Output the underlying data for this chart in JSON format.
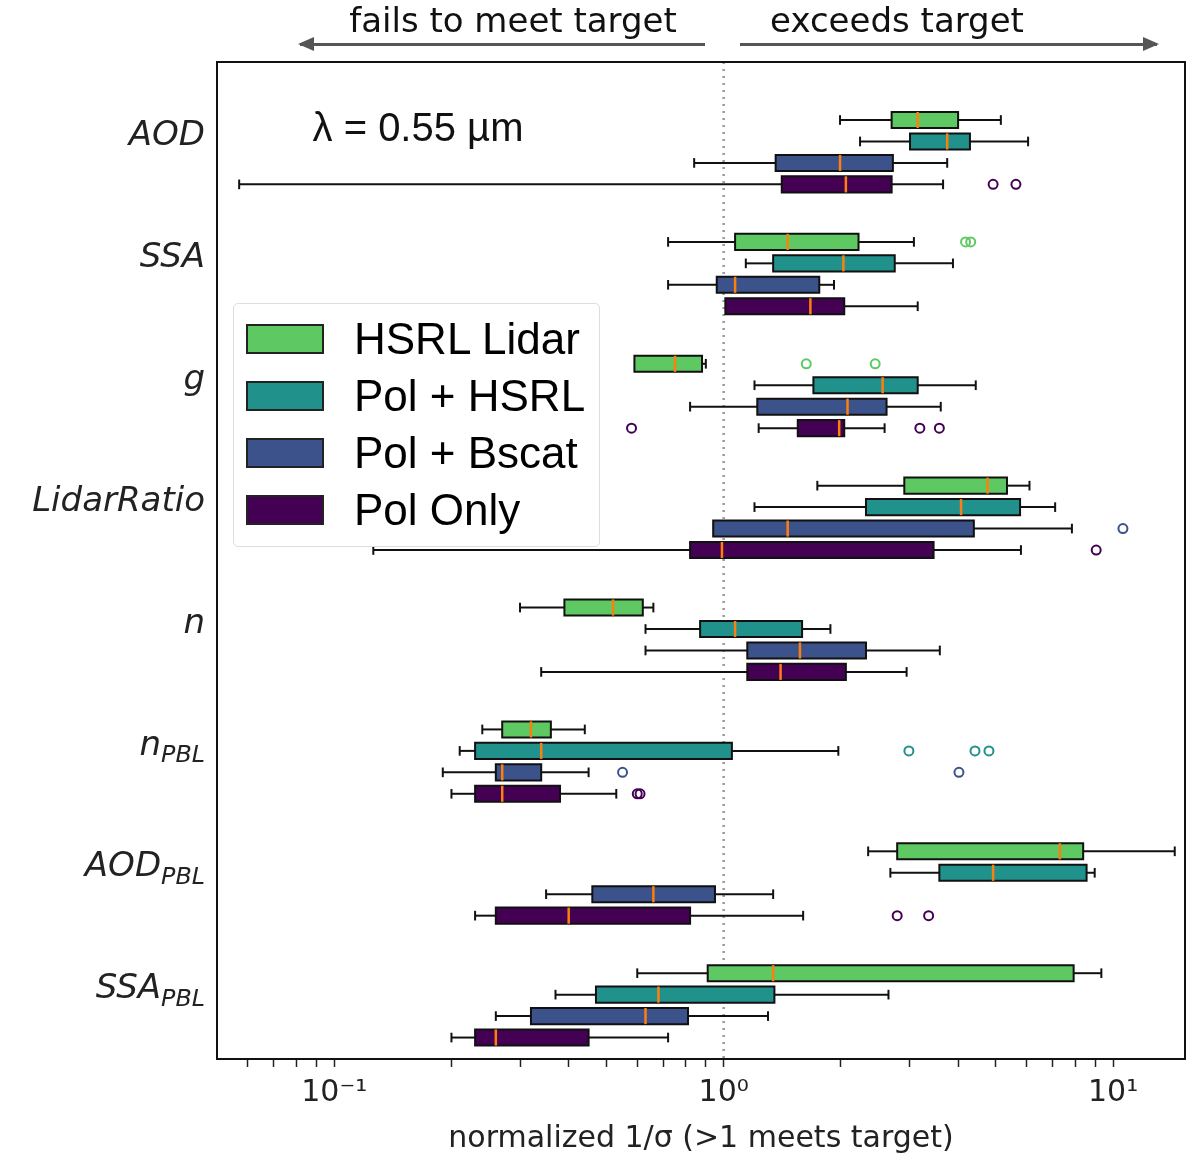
{
  "chart_data": {
    "type": "box",
    "orientation": "horizontal",
    "xlabel": "normalized 1/σ (>1 meets target)",
    "log": "x",
    "grid": false,
    "legend": "left",
    "categories": [
      "AOD",
      "SSA",
      "g",
      "LidarRatio",
      "n",
      "n$_{PBL}$",
      "AOD$_{PBL}$",
      "SSA$_{PBL}$"
    ],
    "xlim": [
      0.05,
      15.3
    ],
    "xticks": [
      {
        "value": 0.06,
        "label": null
      },
      {
        "value": 0.07,
        "label": null
      },
      {
        "value": 0.08,
        "label": null
      },
      {
        "value": 0.09,
        "label": null
      },
      {
        "value": 0.1,
        "label": "10⁻¹"
      },
      {
        "value": 0.2,
        "label": null
      },
      {
        "value": 0.3,
        "label": null
      },
      {
        "value": 0.4,
        "label": null
      },
      {
        "value": 0.5,
        "label": null
      },
      {
        "value": 0.6,
        "label": null
      },
      {
        "value": 0.7,
        "label": null
      },
      {
        "value": 0.8,
        "label": null
      },
      {
        "value": 0.9,
        "label": null
      },
      {
        "value": 1,
        "label": "10⁰"
      },
      {
        "value": 2,
        "label": null
      },
      {
        "value": 3,
        "label": null
      },
      {
        "value": 4,
        "label": null
      },
      {
        "value": 5,
        "label": null
      },
      {
        "value": 6,
        "label": null
      },
      {
        "value": 7,
        "label": null
      },
      {
        "value": 8,
        "label": null
      },
      {
        "value": 9,
        "label": null
      },
      {
        "value": 10,
        "label": "10¹"
      }
    ],
    "ref_lines": [
      {
        "axis": "x",
        "value": 1,
        "color": "#999999",
        "line_style": "dotted"
      }
    ],
    "annotations": [
      "fails to meet target",
      "exceeds target",
      "λ = 0.55 µm"
    ],
    "series": [
      {
        "name": "HSRL Lidar",
        "color": "#5ec962",
        "boxes": [
          {
            "low": 1.99,
            "q1": 2.7,
            "median": 3.15,
            "q3": 4.0,
            "high": 5.15
          },
          {
            "low": 0.72,
            "q1": 1.07,
            "median": 1.46,
            "q3": 2.22,
            "high": 3.08,
            "outliers": [
              4.18,
              4.31
            ]
          },
          {
            "low": null,
            "q1": 0.59,
            "median": 0.75,
            "q3": 0.88,
            "high": 0.9,
            "outliers": [
              1.63,
              2.45
            ]
          },
          {
            "low": 1.74,
            "q1": 2.91,
            "median": 4.76,
            "q3": 5.34,
            "high": 6.1
          },
          {
            "low": 0.3,
            "q1": 0.39,
            "median": 0.52,
            "q3": 0.62,
            "high": 0.66
          },
          {
            "low": 0.24,
            "q1": 0.27,
            "median": 0.32,
            "q3": 0.36,
            "high": 0.44
          },
          {
            "low": 2.35,
            "q1": 2.79,
            "median": 7.3,
            "q3": 8.38,
            "high": 14.4
          },
          {
            "low": 0.6,
            "q1": 0.91,
            "median": 1.34,
            "q3": 7.92,
            "high": 9.33
          }
        ]
      },
      {
        "name": "Pol + HSRL",
        "color": "#21918c",
        "boxes": [
          {
            "low": 2.24,
            "q1": 3.01,
            "median": 3.75,
            "q3": 4.29,
            "high": 6.05
          },
          {
            "low": 1.14,
            "q1": 1.34,
            "median": 2.03,
            "q3": 2.75,
            "high": 3.88
          },
          {
            "low": 1.2,
            "q1": 1.7,
            "median": 2.56,
            "q3": 3.15,
            "high": 4.44
          },
          {
            "low": 1.2,
            "q1": 2.32,
            "median": 4.07,
            "q3": 5.77,
            "high": 7.1
          },
          {
            "low": 0.63,
            "q1": 0.87,
            "median": 1.07,
            "q3": 1.59,
            "high": 1.88
          },
          {
            "low": 0.21,
            "q1": 0.23,
            "median": 0.34,
            "q3": 1.05,
            "high": 1.97,
            "outliers": [
              2.99,
              4.42,
              4.8
            ]
          },
          {
            "low": 2.68,
            "q1": 3.58,
            "median": 4.92,
            "q3": 8.55,
            "high": 8.97
          },
          {
            "low": 0.37,
            "q1": 0.47,
            "median": 0.68,
            "q3": 1.35,
            "high": 2.65
          }
        ]
      },
      {
        "name": "Pol + Bscat",
        "color": "#3b528b",
        "boxes": [
          {
            "low": 0.84,
            "q1": 1.36,
            "median": 1.99,
            "q3": 2.72,
            "high": 3.75
          },
          {
            "low": 0.72,
            "q1": 0.96,
            "median": 1.07,
            "q3": 1.76,
            "high": 1.92
          },
          {
            "low": 0.82,
            "q1": 1.22,
            "median": 2.08,
            "q3": 2.62,
            "high": 3.61
          },
          {
            "low": null,
            "q1": 0.94,
            "median": 1.46,
            "q3": 4.39,
            "high": 7.84,
            "outliers": [
              10.6
            ]
          },
          {
            "low": 0.63,
            "q1": 1.15,
            "median": 1.57,
            "q3": 2.32,
            "high": 3.59
          },
          {
            "low": 0.19,
            "q1": 0.26,
            "median": 0.27,
            "q3": 0.34,
            "high": 0.45,
            "outliers": [
              0.55,
              4.02
            ]
          },
          {
            "low": 0.35,
            "q1": 0.46,
            "median": 0.66,
            "q3": 0.95,
            "high": 1.34
          },
          {
            "low": 0.26,
            "q1": 0.32,
            "median": 0.63,
            "q3": 0.81,
            "high": 1.3
          }
        ]
      },
      {
        "name": "Pol Only",
        "color": "#440154",
        "boxes": [
          {
            "low": 0.057,
            "q1": 1.41,
            "median": 2.06,
            "q3": 2.7,
            "high": 3.66,
            "outliers": [
              4.92,
              5.63
            ]
          },
          {
            "low": null,
            "q1": 1.01,
            "median": 1.67,
            "q3": 2.04,
            "high": 3.15
          },
          {
            "low": 1.23,
            "q1": 1.55,
            "median": 1.98,
            "q3": 2.04,
            "high": 2.59,
            "outliers": [
              0.58,
              3.19,
              3.58
            ]
          },
          {
            "low": 0.126,
            "q1": 0.82,
            "median": 0.99,
            "q3": 3.46,
            "high": 5.8,
            "outliers": [
              9.05
            ]
          },
          {
            "low": 0.34,
            "q1": 1.15,
            "median": 1.4,
            "q3": 2.06,
            "high": 2.95
          },
          {
            "low": 0.2,
            "q1": 0.23,
            "median": 0.27,
            "q3": 0.38,
            "high": 0.53,
            "outliers": [
              0.6,
              0.61
            ]
          },
          {
            "low": 0.23,
            "q1": 0.26,
            "median": 0.4,
            "q3": 0.82,
            "high": 1.6,
            "outliers": [
              2.79,
              3.36
            ]
          },
          {
            "low": 0.2,
            "q1": 0.23,
            "median": 0.26,
            "q3": 0.45,
            "high": 0.72
          }
        ]
      }
    ]
  }
}
